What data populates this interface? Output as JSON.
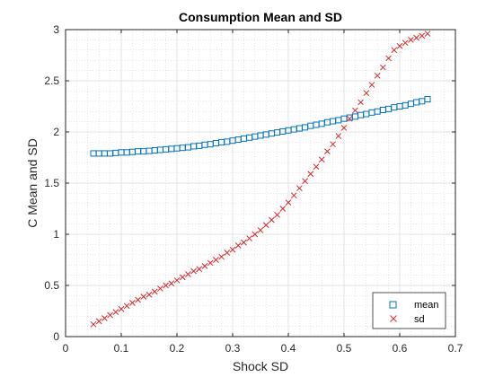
{
  "chart_data": {
    "type": "scatter",
    "title": "Consumption Mean and SD",
    "xlabel": "Shock SD",
    "ylabel": "C Mean and SD",
    "xlim": [
      0,
      0.7
    ],
    "ylim": [
      0,
      3
    ],
    "xticks": [
      "0",
      "0.1",
      "0.2",
      "0.3",
      "0.4",
      "0.5",
      "0.6",
      "0.7"
    ],
    "yticks": [
      "0",
      "0.5",
      "1",
      "1.5",
      "2",
      "2.5",
      "3"
    ],
    "grid": true,
    "minor_grid": true,
    "legend_position": "bottom-right",
    "x": [
      0.05,
      0.06,
      0.07,
      0.08,
      0.09,
      0.1,
      0.11,
      0.12,
      0.13,
      0.14,
      0.15,
      0.16,
      0.17,
      0.18,
      0.19,
      0.2,
      0.21,
      0.22,
      0.23,
      0.24,
      0.25,
      0.26,
      0.27,
      0.28,
      0.29,
      0.3,
      0.31,
      0.32,
      0.33,
      0.34,
      0.35,
      0.36,
      0.37,
      0.38,
      0.39,
      0.4,
      0.41,
      0.42,
      0.43,
      0.44,
      0.45,
      0.46,
      0.47,
      0.48,
      0.49,
      0.5,
      0.51,
      0.52,
      0.53,
      0.54,
      0.55,
      0.56,
      0.57,
      0.58,
      0.59,
      0.6,
      0.61,
      0.62,
      0.63,
      0.64,
      0.65
    ],
    "series": [
      {
        "name": "mean",
        "marker": "square",
        "color": "#0072bd",
        "values": [
          1.79,
          1.79,
          1.79,
          1.79,
          1.795,
          1.8,
          1.8,
          1.805,
          1.81,
          1.81,
          1.815,
          1.82,
          1.825,
          1.83,
          1.835,
          1.84,
          1.845,
          1.85,
          1.86,
          1.865,
          1.875,
          1.88,
          1.89,
          1.9,
          1.905,
          1.915,
          1.925,
          1.935,
          1.945,
          1.955,
          1.965,
          1.975,
          1.985,
          1.995,
          2.005,
          2.015,
          2.025,
          2.035,
          2.045,
          2.06,
          2.07,
          2.08,
          2.095,
          2.105,
          2.115,
          2.13,
          2.14,
          2.15,
          2.165,
          2.175,
          2.19,
          2.2,
          2.215,
          2.225,
          2.24,
          2.25,
          2.26,
          2.275,
          2.29,
          2.3,
          2.32
        ]
      },
      {
        "name": "sd",
        "marker": "x",
        "color": "#d62728",
        "values": [
          0.12,
          0.15,
          0.18,
          0.21,
          0.24,
          0.27,
          0.3,
          0.33,
          0.36,
          0.39,
          0.41,
          0.44,
          0.47,
          0.5,
          0.52,
          0.55,
          0.58,
          0.61,
          0.64,
          0.66,
          0.69,
          0.72,
          0.75,
          0.78,
          0.82,
          0.85,
          0.89,
          0.92,
          0.96,
          1.0,
          1.04,
          1.09,
          1.14,
          1.19,
          1.25,
          1.31,
          1.38,
          1.45,
          1.52,
          1.59,
          1.66,
          1.73,
          1.81,
          1.88,
          1.96,
          2.04,
          2.13,
          2.21,
          2.29,
          2.38,
          2.46,
          2.55,
          2.63,
          2.72,
          2.8,
          2.84,
          2.87,
          2.9,
          2.92,
          2.94,
          2.96
        ]
      }
    ]
  }
}
